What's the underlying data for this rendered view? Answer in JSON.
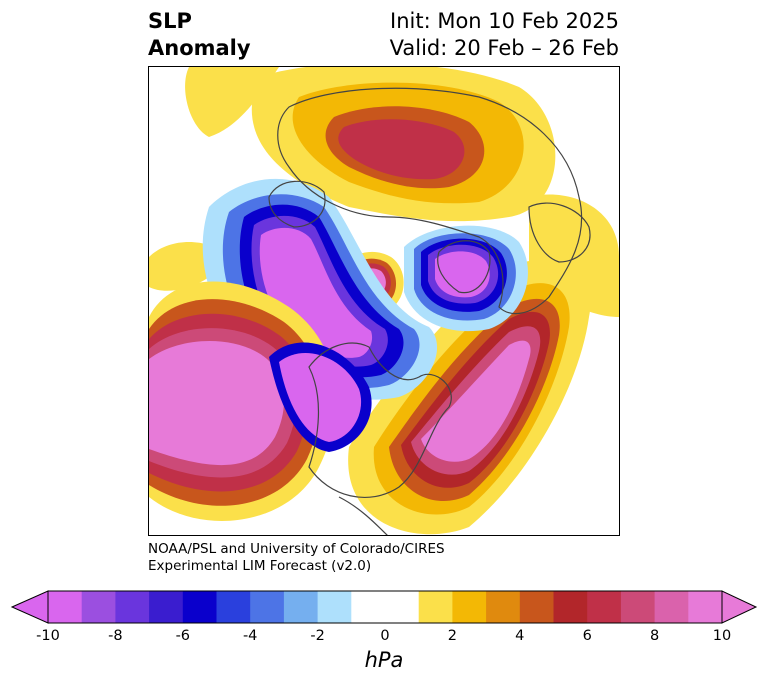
{
  "title": {
    "left_line1": "SLP",
    "left_line2": "Anomaly",
    "init": "Init: Mon 10 Feb 2025",
    "valid": "Valid: 20 Feb – 26 Feb"
  },
  "credit": {
    "line1": "NOAA/PSL and University of Colorado/CIRES",
    "line2": "Experimental LIM Forecast (v2.0)"
  },
  "colorbar": {
    "unit": "hPa",
    "ticks": [
      "-10",
      "-8",
      "-6",
      "-4",
      "-2",
      "0",
      "2",
      "4",
      "6",
      "8",
      "10"
    ],
    "colors": [
      "#d966ee",
      "#9b4fe0",
      "#6a35dd",
      "#3a1dcf",
      "#0a00cc",
      "#2a40dd",
      "#4d74e6",
      "#75afef",
      "#aee0fc",
      "#ffffff",
      "#ffffff",
      "#fbe04a",
      "#f3b805",
      "#e08a0e",
      "#c8561c",
      "#b2262a",
      "#c03048",
      "#cc4a78",
      "#da62ac",
      "#e77ad8"
    ],
    "extend_low_color": "#d966ee",
    "extend_high_color": "#e77ad8"
  },
  "map": {
    "projection": "north polar stereographic",
    "field": "SLP anomaly (hPa)",
    "features": [
      {
        "name": "north-pacific-low",
        "sign": "negative",
        "peak_hPa": -10
      },
      {
        "name": "canada-low",
        "sign": "negative",
        "peak_hPa": -10
      },
      {
        "name": "north-atlantic-low",
        "sign": "negative",
        "peak_hPa": -10
      },
      {
        "name": "polar-high",
        "sign": "positive",
        "peak_hPa": 10
      },
      {
        "name": "eastern-us-atlantic-high",
        "sign": "positive",
        "peak_hPa": 10
      },
      {
        "name": "siberia-high",
        "sign": "positive",
        "peak_hPa": 8
      }
    ]
  }
}
